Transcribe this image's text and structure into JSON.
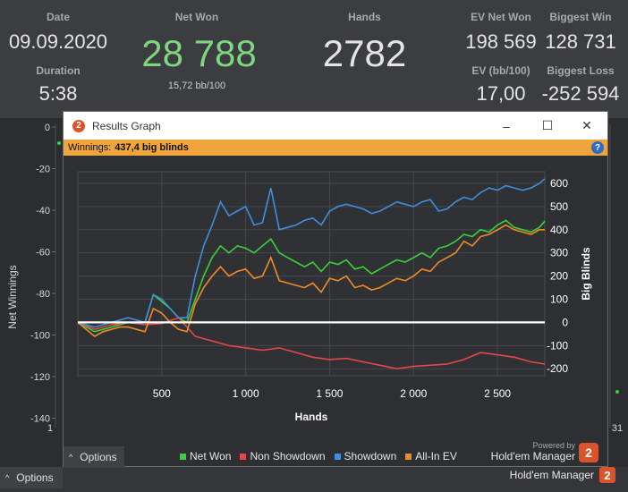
{
  "stats": {
    "date_label": "Date",
    "date_value": "09.09.2020",
    "duration_label": "Duration",
    "duration_value": "5:38",
    "net_won_label": "Net Won",
    "net_won_value": "28 788",
    "net_won_sub": "15,72 bb/100",
    "hands_label": "Hands",
    "hands_value": "2782",
    "ev_net_won_label": "EV Net Won",
    "ev_net_won_value": "198 569",
    "biggest_win_label": "Biggest Win",
    "biggest_win_value": "128 731",
    "ev_bb_label": "EV (bb/100)",
    "ev_bb_value": "17,00",
    "biggest_loss_label": "Biggest Loss",
    "biggest_loss_value": "-252 594"
  },
  "background_chart": {
    "ylabel": "Net Winnings",
    "yticks": [
      "0",
      "-20",
      "-40",
      "-60",
      "-80",
      "-100",
      "-120",
      "-140"
    ],
    "xtick_left": "1",
    "xtick_right": "31"
  },
  "bottom_bar": {
    "options_label": "Options",
    "brand": "Hold'em Manager",
    "brand_logo": "2"
  },
  "dialog": {
    "title": "Results Graph",
    "title_logo": "2",
    "winnings_label": "Winnings:",
    "winnings_value": "437,4 big blinds",
    "help_icon": "?",
    "minimize": "–",
    "maximize": "☐",
    "close": "✕",
    "options_label": "Options",
    "powered_by": "Powered by",
    "powered_brand": "Hold'em Manager",
    "powered_logo": "2"
  },
  "chart_data": {
    "type": "line",
    "xlabel": "Hands",
    "ylabel": "Big Blinds",
    "xlim": [
      0,
      2782
    ],
    "ylim": [
      -230,
      650
    ],
    "xticks": [
      500,
      1000,
      1500,
      2000,
      2500
    ],
    "xtick_labels": [
      "500",
      "1 000",
      "1 500",
      "2 000",
      "2 500"
    ],
    "yticks": [
      600,
      500,
      400,
      300,
      200,
      100,
      0,
      -100,
      -200
    ],
    "yaxis_position": "right",
    "grid": true,
    "legend_position": "bottom",
    "series": [
      {
        "name": "Net Won",
        "color": "#3ad13a",
        "x": [
          0,
          100,
          150,
          200,
          250,
          300,
          350,
          400,
          450,
          500,
          550,
          600,
          650,
          700,
          750,
          800,
          850,
          900,
          950,
          1000,
          1050,
          1100,
          1150,
          1200,
          1250,
          1300,
          1350,
          1400,
          1450,
          1500,
          1550,
          1600,
          1650,
          1700,
          1750,
          1800,
          1850,
          1900,
          1950,
          2000,
          2050,
          2100,
          2150,
          2200,
          2250,
          2300,
          2350,
          2400,
          2450,
          2500,
          2550,
          2600,
          2650,
          2700,
          2750,
          2782
        ],
        "y": [
          0,
          -40,
          -30,
          -20,
          -10,
          0,
          -5,
          0,
          120,
          90,
          60,
          20,
          0,
          100,
          200,
          280,
          330,
          300,
          330,
          320,
          300,
          330,
          360,
          300,
          280,
          260,
          240,
          260,
          220,
          260,
          250,
          270,
          230,
          240,
          210,
          230,
          250,
          270,
          260,
          280,
          300,
          280,
          320,
          330,
          350,
          380,
          370,
          400,
          390,
          420,
          440,
          410,
          400,
          390,
          410,
          437
        ]
      },
      {
        "name": "Non Showdown",
        "color": "#e04a4a",
        "x": [
          0,
          100,
          200,
          300,
          400,
          500,
          600,
          700,
          800,
          900,
          1000,
          1100,
          1200,
          1300,
          1400,
          1500,
          1600,
          1700,
          1800,
          1900,
          2000,
          2100,
          2200,
          2300,
          2400,
          2500,
          2600,
          2700,
          2782
        ],
        "y": [
          0,
          -30,
          -10,
          0,
          -10,
          -5,
          20,
          -60,
          -80,
          -100,
          -110,
          -120,
          -110,
          -130,
          -150,
          -160,
          -155,
          -170,
          -185,
          -200,
          -190,
          -185,
          -180,
          -160,
          -130,
          -140,
          -150,
          -170,
          -180
        ]
      },
      {
        "name": "Showdown",
        "color": "#3f8fdc",
        "x": [
          0,
          100,
          150,
          200,
          250,
          300,
          350,
          400,
          450,
          500,
          550,
          600,
          650,
          700,
          750,
          800,
          850,
          900,
          950,
          1000,
          1050,
          1100,
          1150,
          1200,
          1250,
          1300,
          1350,
          1400,
          1450,
          1500,
          1550,
          1600,
          1650,
          1700,
          1750,
          1800,
          1850,
          1900,
          1950,
          2000,
          2050,
          2100,
          2150,
          2200,
          2250,
          2300,
          2350,
          2400,
          2450,
          2500,
          2550,
          2600,
          2650,
          2700,
          2750,
          2782
        ],
        "y": [
          0,
          -20,
          -10,
          0,
          10,
          20,
          10,
          0,
          120,
          100,
          60,
          20,
          20,
          200,
          330,
          420,
          520,
          460,
          480,
          500,
          420,
          430,
          580,
          400,
          410,
          420,
          440,
          450,
          420,
          480,
          500,
          510,
          500,
          490,
          470,
          480,
          500,
          520,
          510,
          500,
          520,
          530,
          480,
          490,
          520,
          540,
          530,
          560,
          580,
          570,
          590,
          580,
          570,
          580,
          600,
          620
        ]
      },
      {
        "name": "All-In EV",
        "color": "#f08a24",
        "x": [
          0,
          100,
          150,
          200,
          250,
          300,
          350,
          400,
          450,
          500,
          550,
          600,
          650,
          700,
          750,
          800,
          850,
          900,
          950,
          1000,
          1050,
          1100,
          1150,
          1200,
          1250,
          1300,
          1350,
          1400,
          1450,
          1500,
          1550,
          1600,
          1650,
          1700,
          1750,
          1800,
          1850,
          1900,
          1950,
          2000,
          2050,
          2100,
          2150,
          2200,
          2250,
          2300,
          2350,
          2400,
          2450,
          2500,
          2550,
          2600,
          2650,
          2700,
          2750,
          2782
        ],
        "y": [
          0,
          -60,
          -40,
          -30,
          -20,
          -20,
          -30,
          -40,
          60,
          40,
          0,
          -30,
          -40,
          80,
          150,
          200,
          240,
          200,
          220,
          230,
          190,
          200,
          280,
          180,
          170,
          160,
          150,
          170,
          130,
          190,
          180,
          200,
          150,
          160,
          140,
          150,
          170,
          190,
          180,
          200,
          230,
          220,
          260,
          280,
          300,
          350,
          330,
          370,
          380,
          400,
          420,
          400,
          390,
          380,
          400,
          400
        ]
      },
      {
        "name": "",
        "color": "#ffffff",
        "x": [
          0,
          2782
        ],
        "y": [
          0,
          0
        ]
      }
    ]
  }
}
